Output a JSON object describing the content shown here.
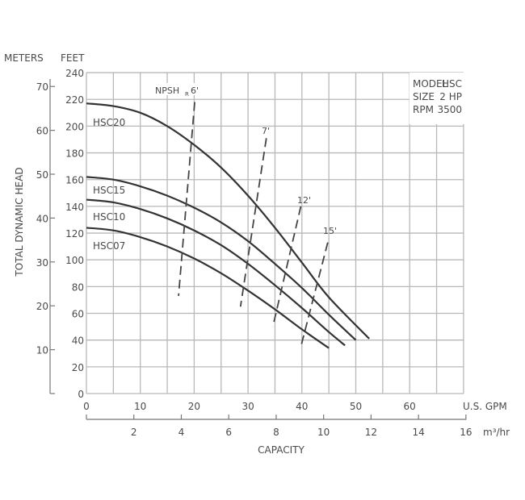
{
  "chart_data": {
    "type": "line",
    "title": "",
    "xlabel": "CAPACITY",
    "ylabel": "TOTAL DYNAMIC HEAD",
    "x_primary": {
      "unit": "U.S. GPM",
      "ticks": [
        0,
        10,
        20,
        30,
        40,
        50,
        60
      ],
      "range": [
        0,
        70
      ],
      "grid_step": 5
    },
    "x_secondary": {
      "unit": "m³/hr",
      "ticks": [
        2,
        4,
        6,
        8,
        10,
        12,
        14,
        16
      ]
    },
    "y_primary": {
      "unit": "FEET",
      "ticks": [
        0,
        20,
        40,
        60,
        80,
        100,
        120,
        140,
        160,
        180,
        200,
        220,
        240
      ],
      "range": [
        0,
        240
      ]
    },
    "y_secondary": {
      "unit": "METERS",
      "ticks": [
        10,
        20,
        30,
        40,
        50,
        60,
        70
      ]
    },
    "grid": true,
    "legend_box": {
      "model_label": "MODEL",
      "model_value": "HSC",
      "size_label": "SIZE",
      "size_value": "2 HP",
      "rpm_label": "RPM",
      "rpm_value": "3500"
    },
    "series": [
      {
        "name": "HSC20",
        "x": [
          0,
          5,
          10,
          15,
          20,
          25,
          30,
          35,
          40,
          45,
          52.5
        ],
        "y": [
          217,
          215,
          210,
          200,
          186,
          169,
          148,
          124,
          98,
          72,
          41
        ]
      },
      {
        "name": "HSC15",
        "x": [
          0,
          5,
          10,
          15,
          20,
          25,
          30,
          35,
          40,
          45,
          50
        ],
        "y": [
          162,
          160,
          155,
          148,
          139,
          128,
          114,
          97,
          79,
          59,
          40
        ]
      },
      {
        "name": "HSC10",
        "x": [
          0,
          5,
          10,
          15,
          20,
          25,
          30,
          35,
          40,
          45,
          48
        ],
        "y": [
          145,
          143,
          138,
          131,
          122,
          111,
          97,
          81,
          64,
          46,
          36
        ]
      },
      {
        "name": "HSC07",
        "x": [
          0,
          5,
          10,
          15,
          20,
          25,
          30,
          35,
          40,
          45
        ],
        "y": [
          124,
          122,
          117,
          110,
          101,
          90,
          77,
          63,
          48,
          34
        ]
      }
    ],
    "npsh_lines": [
      {
        "label": "NPSHR 6'",
        "x": [
          20.1,
          17.1
        ],
        "y": [
          218,
          73
        ]
      },
      {
        "label": "7'",
        "x": [
          33.4,
          28.6
        ],
        "y": [
          191,
          65
        ]
      },
      {
        "label": "12'",
        "x": [
          39.8,
          34.6
        ],
        "y": [
          140,
          50
        ]
      },
      {
        "label": "15'",
        "x": [
          44.8,
          39.8
        ],
        "y": [
          113,
          35
        ]
      }
    ]
  },
  "labels": {
    "meters": "METERS",
    "feet": "FEET",
    "ylabel": "TOTAL DYNAMIC HEAD",
    "xlabel": "CAPACITY",
    "gpm": "U.S. GPM",
    "m3hr": "m³/hr",
    "npsh_prefix": "NPSH",
    "npsh_sub": "R",
    "npsh_6": "6'",
    "npsh_7": "7'",
    "npsh_12": "12'",
    "npsh_15": "15'",
    "hsc20": "HSC20",
    "hsc15": "HSC15",
    "hsc10": "HSC10",
    "hsc07": "HSC07"
  },
  "colors": {
    "grid": "#b8b8b8",
    "curve": "#333333",
    "text": "#4a4a4a",
    "axis": "#777777"
  }
}
